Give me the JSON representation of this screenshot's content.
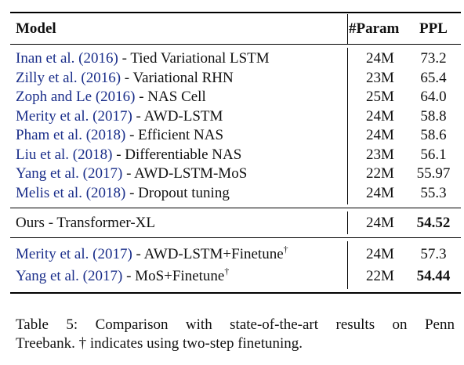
{
  "table": {
    "headers": {
      "model": "Model",
      "param": "#Param",
      "ppl": "PPL"
    },
    "group_baselines": [
      {
        "citation": "Inan et al. (2016)",
        "method": " - Tied Variational LSTM",
        "param": "24M",
        "ppl": "73.2"
      },
      {
        "citation": "Zilly et al. (2016)",
        "method": " - Variational RHN",
        "param": "23M",
        "ppl": "65.4"
      },
      {
        "citation": "Zoph and Le (2016)",
        "method": " - NAS Cell",
        "param": "25M",
        "ppl": "64.0"
      },
      {
        "citation": "Merity et al. (2017)",
        "method": " - AWD-LSTM",
        "param": "24M",
        "ppl": "58.8"
      },
      {
        "citation": "Pham et al. (2018)",
        "method": " - Efficient NAS",
        "param": "24M",
        "ppl": "58.6"
      },
      {
        "citation": "Liu et al. (2018)",
        "method": " - Differentiable NAS",
        "param": "23M",
        "ppl": "56.1"
      },
      {
        "citation": "Yang et al. (2017)",
        "method": " - AWD-LSTM-MoS",
        "param": "22M",
        "ppl": "55.97"
      },
      {
        "citation": "Melis et al. (2018)",
        "method": " - Dropout tuning",
        "param": "24M",
        "ppl": "55.3"
      }
    ],
    "group_ours": [
      {
        "model": "Ours - Transformer-XL",
        "param": "24M",
        "ppl": "54.52"
      }
    ],
    "group_finetune": [
      {
        "citation": "Merity et al. (2017)",
        "method": " - AWD-LSTM+Finetune",
        "mark": "†",
        "param": "24M",
        "ppl": "57.3"
      },
      {
        "citation": "Yang et al. (2017)",
        "method": " - MoS+Finetune",
        "mark": "†",
        "param": "22M",
        "ppl": "54.44"
      }
    ]
  },
  "caption": {
    "line1": "Table 5:  Comparison with state-of-the-art results on Penn",
    "line2": "Treebank. † indicates using two-step finetuning."
  }
}
